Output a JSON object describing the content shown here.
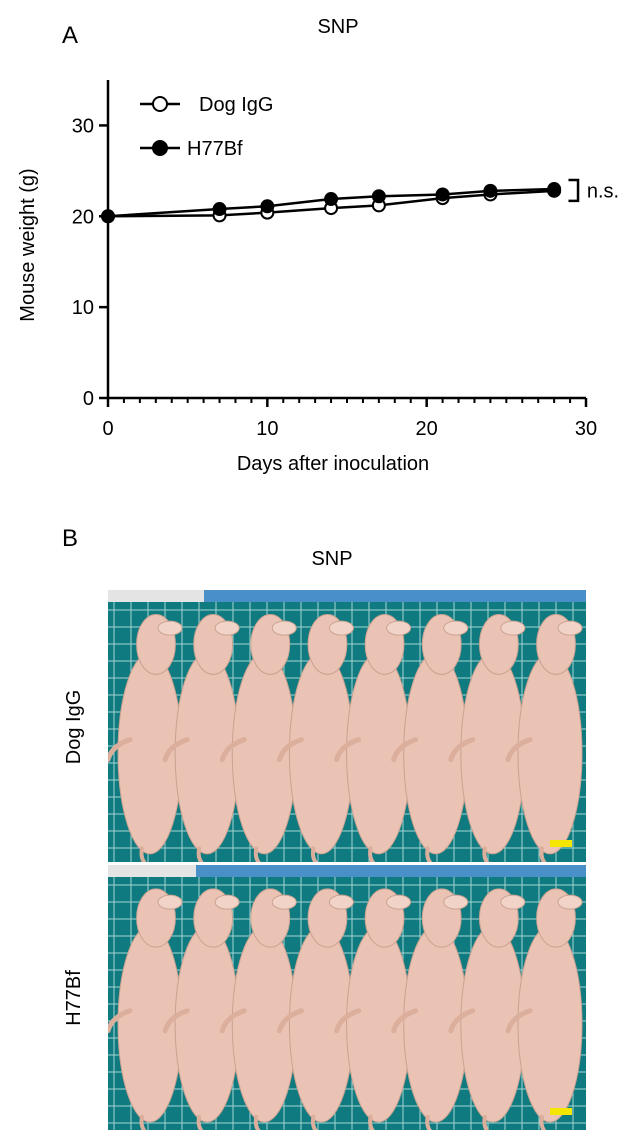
{
  "panel_a": {
    "letter": "A",
    "title": "SNP"
  },
  "panel_b": {
    "letter": "B",
    "title": "SNP",
    "row_labels": [
      "Dog IgG",
      "H77Bf"
    ],
    "mice_per_row": 8
  },
  "chart_data": {
    "type": "line",
    "title": "SNP",
    "xlabel": "Days after inoculation",
    "ylabel": "Mouse weight (g)",
    "xlim": [
      0,
      30
    ],
    "ylim": [
      0,
      35
    ],
    "xticks": [
      0,
      10,
      20,
      30
    ],
    "yticks": [
      0,
      10,
      20,
      30
    ],
    "grid": false,
    "legend_position": "top-left",
    "x": [
      0,
      7,
      10,
      14,
      17,
      21,
      24,
      28
    ],
    "series": [
      {
        "name": "Dog IgG",
        "marker": "open-circle",
        "values": [
          20.0,
          20.1,
          20.4,
          20.9,
          21.2,
          22.0,
          22.4,
          22.8
        ]
      },
      {
        "name": "H77Bf",
        "marker": "filled-circle",
        "values": [
          20.0,
          20.8,
          21.1,
          21.9,
          22.2,
          22.4,
          22.8,
          23.0
        ]
      }
    ],
    "annotation": "n.s."
  },
  "colors": {
    "board": "#0f7a7f",
    "grid": "#bfe6e2",
    "mouse": "#ebc3b4",
    "scale_bar": "#f5e600",
    "ruler": "#4a90c8"
  }
}
